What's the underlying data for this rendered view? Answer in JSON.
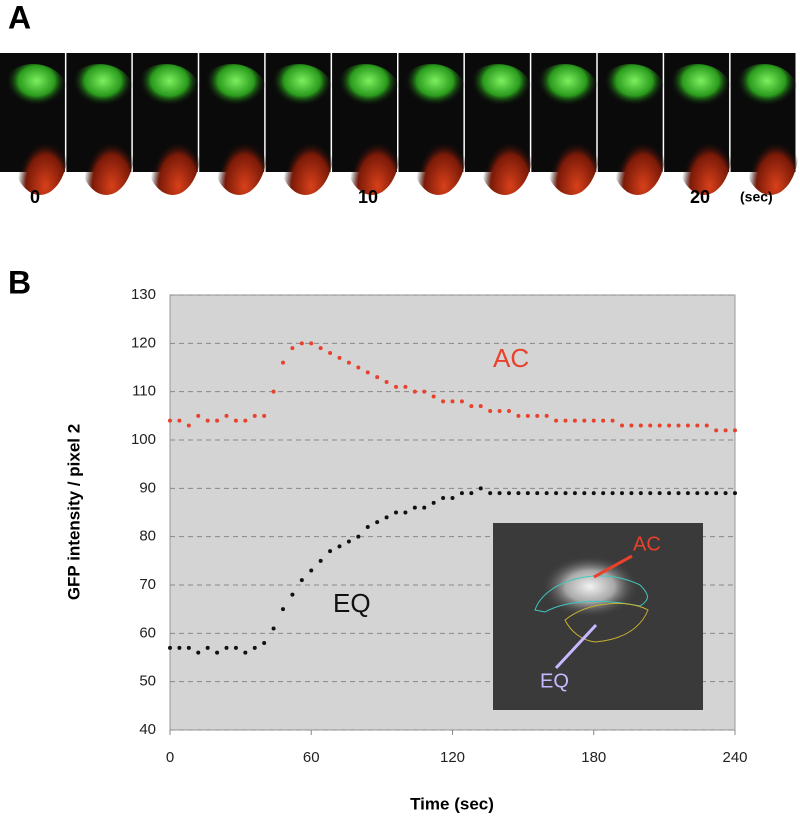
{
  "panel_labels": [
    "A",
    "B"
  ],
  "strip": {
    "time_labels": [
      "0",
      "10",
      "20"
    ],
    "unit": "(sec)"
  },
  "chart_data": {
    "type": "scatter",
    "x_label": "Time (sec)",
    "y_label": "GFP intensity / pixel 2",
    "x": [
      0,
      4,
      8,
      12,
      16,
      20,
      24,
      28,
      32,
      36,
      40,
      44,
      48,
      52,
      56,
      60,
      64,
      68,
      72,
      76,
      80,
      84,
      88,
      92,
      96,
      100,
      104,
      108,
      112,
      116,
      120,
      124,
      128,
      132,
      136,
      140,
      144,
      148,
      152,
      156,
      160,
      164,
      168,
      172,
      176,
      180,
      184,
      188,
      192,
      196,
      200,
      204,
      208,
      212,
      216,
      220,
      224,
      228,
      232,
      236,
      240
    ],
    "series": [
      {
        "name": "AC",
        "color": "#e8412c",
        "values": [
          104,
          104,
          103,
          105,
          104,
          104,
          105,
          104,
          104,
          105,
          105,
          110,
          116,
          119,
          120,
          120,
          119,
          118,
          117,
          116,
          115,
          114,
          113,
          112,
          111,
          111,
          110,
          110,
          109,
          108,
          108,
          108,
          107,
          107,
          106,
          106,
          106,
          105,
          105,
          105,
          105,
          104,
          104,
          104,
          104,
          104,
          104,
          104,
          103,
          103,
          103,
          103,
          103,
          103,
          103,
          103,
          103,
          103,
          102,
          102,
          102
        ]
      },
      {
        "name": "EQ",
        "color": "#111111",
        "values": [
          57,
          57,
          57,
          56,
          57,
          56,
          57,
          57,
          56,
          57,
          58,
          61,
          65,
          68,
          71,
          73,
          75,
          77,
          78,
          79,
          80,
          82,
          83,
          84,
          85,
          85,
          86,
          86,
          87,
          88,
          88,
          89,
          89,
          90,
          89,
          89,
          89,
          89,
          89,
          89,
          89,
          89,
          89,
          89,
          89,
          89,
          89,
          89,
          89,
          89,
          89,
          89,
          89,
          89,
          89,
          89,
          89,
          89,
          89,
          89,
          89
        ]
      }
    ],
    "xlim": [
      0,
      240
    ],
    "xticks": [
      0,
      60,
      120,
      180,
      240
    ],
    "ylim": [
      40,
      130
    ],
    "yticks": [
      40,
      50,
      60,
      70,
      80,
      90,
      100,
      110,
      120,
      130
    ],
    "grid": true,
    "inset_labels": [
      "AC",
      "EQ"
    ]
  }
}
